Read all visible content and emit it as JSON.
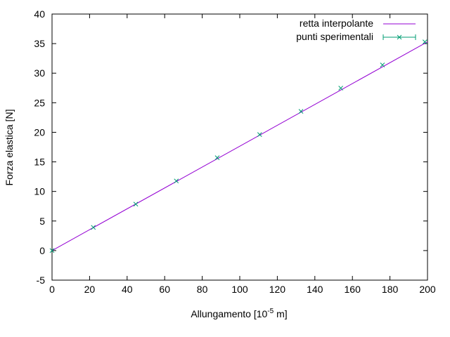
{
  "chart_data": {
    "type": "scatter",
    "xlabel_main": "Allungamento [10",
    "xlabel_exp": "-5",
    "xlabel_unit": " m]",
    "ylabel": "Forza elastica [N]",
    "xlim": [
      0,
      200
    ],
    "ylim": [
      -5,
      40
    ],
    "xticks": [
      0,
      20,
      40,
      60,
      80,
      100,
      120,
      140,
      160,
      180,
      200
    ],
    "yticks": [
      -5,
      0,
      5,
      10,
      15,
      20,
      25,
      30,
      35,
      40
    ],
    "grid": false,
    "legend_position": "top-right",
    "series": [
      {
        "name": "retta interpolante",
        "kind": "line",
        "color": "#9400d3",
        "x": [
          0,
          200
        ],
        "y": [
          0,
          35.3
        ]
      },
      {
        "name": "punti sperimentali",
        "kind": "points",
        "marker": "x",
        "color": "#009e73",
        "x": [
          0,
          22,
          44.6,
          66.2,
          88,
          110.6,
          132.6,
          153.8,
          176,
          198.6
        ],
        "y": [
          0,
          3.92,
          7.85,
          11.77,
          15.7,
          19.62,
          23.54,
          27.47,
          31.39,
          35.3
        ]
      }
    ]
  }
}
